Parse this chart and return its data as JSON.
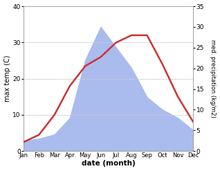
{
  "months": [
    "Jan",
    "Feb",
    "Mar",
    "Apr",
    "May",
    "Jun",
    "Jul",
    "Aug",
    "Sep",
    "Oct",
    "Nov",
    "Dec"
  ],
  "temperature": [
    2.5,
    4.5,
    10.0,
    18.0,
    23.5,
    26.0,
    30.0,
    32.0,
    32.0,
    24.0,
    15.0,
    8.0
  ],
  "precipitation": [
    2.5,
    3.0,
    4.0,
    8.0,
    22.0,
    30.0,
    25.0,
    20.0,
    13.0,
    10.0,
    8.0,
    5.0
  ],
  "temp_color": "#cc3333",
  "precip_color": "#aabbee",
  "temp_ylim": [
    0,
    40
  ],
  "precip_ylim": [
    0,
    35
  ],
  "temp_yticks": [
    0,
    10,
    20,
    30,
    40
  ],
  "precip_yticks": [
    0,
    5,
    10,
    15,
    20,
    25,
    30,
    35
  ],
  "xlabel": "date (month)",
  "ylabel_left": "max temp (C)",
  "ylabel_right": "med. precipitation (kg/m2)",
  "grid_color": "#cccccc"
}
